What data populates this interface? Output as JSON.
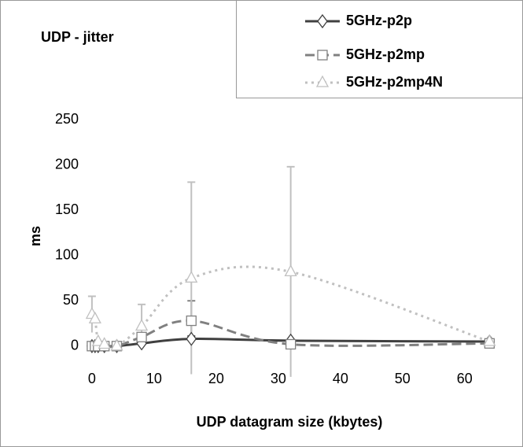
{
  "chart_data": {
    "type": "line",
    "title": "UDP - jitter",
    "x_label": "UDP datagram size (kbytes)",
    "y_label": "ms",
    "x": [
      0,
      0.5,
      1,
      2,
      4,
      8,
      16,
      32,
      64
    ],
    "xlim": [
      -1,
      68
    ],
    "xticks": [
      0,
      10,
      20,
      30,
      40,
      50,
      60
    ],
    "ylim": [
      -8,
      250
    ],
    "yticks": [
      0,
      50,
      100,
      150,
      200,
      250
    ],
    "smooth": true,
    "series": [
      {
        "name": "5GHz-p2p",
        "color": "#404040",
        "line_style": "solid",
        "marker": "diamond",
        "values": [
          0,
          0,
          0,
          0,
          0,
          3,
          8,
          6,
          5
        ],
        "errors": [
          null,
          null,
          null,
          null,
          null,
          null,
          3,
          null,
          null
        ]
      },
      {
        "name": "5GHz-p2mp",
        "color": "#808080",
        "line_style": "dashed",
        "marker": "square",
        "values": [
          0,
          0,
          0,
          0,
          0,
          10,
          28,
          2,
          3
        ],
        "errors": [
          null,
          null,
          null,
          null,
          null,
          null,
          22,
          null,
          null
        ]
      },
      {
        "name": "5GHz-p2mp4N",
        "color": "#c0c0c0",
        "line_style": "dotted",
        "marker": "triangle",
        "values": [
          35,
          30,
          5,
          2,
          0,
          22,
          75,
          82,
          5
        ],
        "errors": [
          20,
          null,
          null,
          null,
          null,
          24,
          106,
          116,
          null
        ]
      }
    ]
  }
}
